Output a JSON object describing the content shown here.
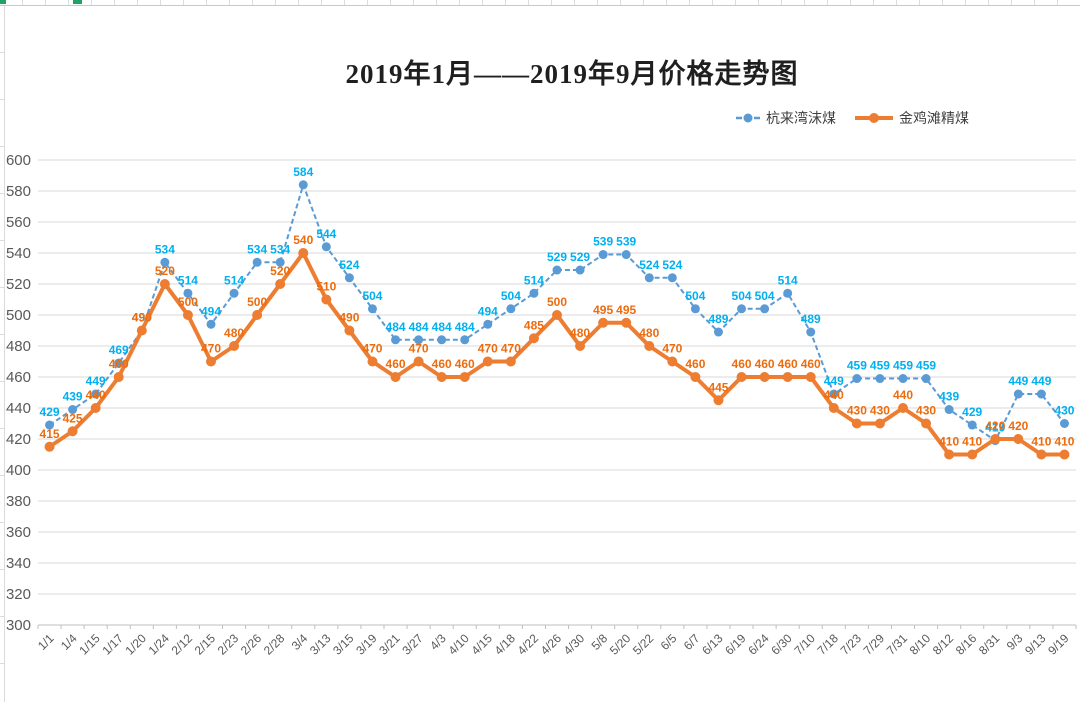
{
  "page": {
    "title": "2019年1月——2019年9月价格走势图"
  },
  "legend": {
    "position": "top-right",
    "items": [
      {
        "label": "杭来湾沫煤",
        "color": "#5B9BD5",
        "style": "dashed"
      },
      {
        "label": "金鸡滩精煤",
        "color": "#ED7D31",
        "style": "solid"
      }
    ]
  },
  "colors": {
    "blue_series": "#5B9BD5",
    "blue_data_label": "#00B0F0",
    "orange_series": "#ED7D31",
    "orange_data_label": "#ED6C0E",
    "axis_text": "#595959",
    "gridline": "#D9D9D9",
    "axis_line": "#BFBFBF",
    "selection_handle_green": "#21A366"
  },
  "chart_data": {
    "type": "line",
    "title": "2019年1月——2019年9月价格走势图",
    "grid": true,
    "legend_position": "top-right",
    "ylim": [
      300,
      600
    ],
    "ytick_step": 20,
    "yticks": [
      300,
      320,
      340,
      360,
      380,
      400,
      420,
      440,
      460,
      480,
      500,
      520,
      540,
      560,
      580,
      600
    ],
    "categories": [
      "1/1",
      "1/4",
      "1/15",
      "1/17",
      "1/20",
      "1/24",
      "2/12",
      "2/15",
      "2/23",
      "2/26",
      "2/28",
      "3/4",
      "3/13",
      "3/15",
      "3/19",
      "3/21",
      "3/27",
      "4/3",
      "4/10",
      "4/15",
      "4/18",
      "4/22",
      "4/26",
      "4/30",
      "5/8",
      "5/20",
      "5/22",
      "6/5",
      "6/7",
      "6/13",
      "6/19",
      "6/24",
      "6/30",
      "7/10",
      "7/18",
      "7/23",
      "7/29",
      "7/31",
      "8/10",
      "8/12",
      "8/16",
      "8/31",
      "9/3",
      "9/13",
      "9/19"
    ],
    "series": [
      {
        "name": "杭来湾沫煤",
        "color": "#5B9BD5",
        "label_color": "#00B0F0",
        "dash": true,
        "values": [
          429,
          439,
          449,
          469,
          490,
          534,
          514,
          494,
          514,
          534,
          534,
          584,
          544,
          524,
          504,
          484,
          484,
          484,
          484,
          494,
          504,
          514,
          529,
          529,
          539,
          539,
          524,
          524,
          504,
          489,
          504,
          504,
          514,
          489,
          449,
          459,
          459,
          459,
          459,
          439,
          429,
          419,
          449,
          449,
          430
        ]
      },
      {
        "name": "金鸡滩精煤",
        "color": "#ED7D31",
        "label_color": "#ED6C0E",
        "dash": false,
        "values": [
          415,
          425,
          440,
          460,
          490,
          520,
          500,
          470,
          480,
          500,
          520,
          540,
          510,
          490,
          470,
          460,
          470,
          460,
          460,
          470,
          470,
          485,
          500,
          480,
          495,
          495,
          480,
          470,
          460,
          445,
          460,
          460,
          460,
          460,
          440,
          430,
          430,
          440,
          430,
          410,
          410,
          420,
          420,
          410,
          410
        ]
      }
    ]
  }
}
